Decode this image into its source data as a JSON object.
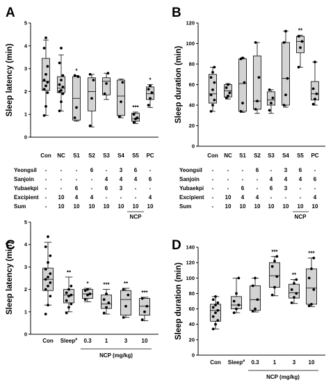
{
  "chart_data": [
    {
      "panel": "A",
      "type": "box",
      "ylabel": "Sleep latency (min)",
      "ylim": [
        0,
        5
      ],
      "yticks": [
        "0",
        "1",
        "2",
        "3",
        "4",
        "5"
      ],
      "categories": [
        "Con",
        "NC",
        "S1",
        "S2",
        "S3",
        "S4",
        "S5",
        "PC"
      ],
      "boxes": [
        {
          "min": 0.95,
          "q1": 2.05,
          "median": 2.45,
          "q3": 3.45,
          "max": 4.25,
          "points": [
            0.95,
            1.35,
            1.95,
            2.1,
            2.25,
            2.4,
            2.5,
            2.75,
            3.1,
            3.9,
            4.35
          ]
        },
        {
          "min": 1.15,
          "q1": 1.95,
          "median": 2.15,
          "q3": 2.65,
          "max": 3.6,
          "points": [
            1.15,
            1.55,
            1.9,
            2.0,
            2.05,
            2.2,
            2.3,
            2.5,
            2.7,
            3.25,
            3.9
          ]
        },
        {
          "min": 0.7,
          "q1": 0.75,
          "median": 1.7,
          "q3": 2.65,
          "max": 2.7,
          "points": [
            0.85,
            1.3,
            2.65,
            2.7
          ]
        },
        {
          "min": 0.45,
          "q1": 1.15,
          "median": 2.0,
          "q3": 2.6,
          "max": 2.75,
          "points": [
            0.5,
            1.7,
            2.5,
            2.75
          ]
        },
        {
          "min": 1.65,
          "q1": 1.85,
          "median": 2.45,
          "q3": 2.6,
          "max": 2.8,
          "points": [
            1.9,
            2.35,
            2.8
          ]
        },
        {
          "min": 0.85,
          "q1": 0.95,
          "median": 1.8,
          "q3": 2.5,
          "max": 2.55,
          "points": [
            0.9,
            1.55,
            2.4
          ]
        },
        {
          "min": 0.6,
          "q1": 0.7,
          "median": 0.8,
          "q3": 1.05,
          "max": 1.1,
          "points": [
            0.65,
            0.8,
            0.85,
            1.0
          ]
        },
        {
          "min": 1.3,
          "q1": 1.65,
          "median": 1.9,
          "q3": 2.2,
          "max": 2.3,
          "points": [
            1.4,
            1.7,
            1.95,
            2.1,
            2.25
          ]
        }
      ],
      "significance": [
        "",
        "",
        "*",
        "",
        "",
        "",
        "***",
        "*"
      ]
    },
    {
      "panel": "B",
      "type": "box",
      "ylabel": "Sleep duration (min)",
      "ylim": [
        0,
        120
      ],
      "yticks": [
        "0",
        "20",
        "40",
        "60",
        "80",
        "100",
        "120"
      ],
      "categories": [
        "Con",
        "NC",
        "S1",
        "S2",
        "S3",
        "S4",
        "S5",
        "PC"
      ],
      "boxes": [
        {
          "min": 34,
          "q1": 42,
          "median": 51,
          "q3": 70,
          "max": 77,
          "points": [
            34,
            40,
            45,
            50,
            55,
            62,
            67,
            72,
            77
          ]
        },
        {
          "min": 46,
          "q1": 48,
          "median": 54,
          "q3": 60,
          "max": 61,
          "points": [
            47,
            49,
            52,
            57,
            60
          ]
        },
        {
          "min": 33,
          "q1": 34,
          "median": 61,
          "q3": 85,
          "max": 86,
          "points": [
            34,
            42,
            62,
            85,
            86
          ]
        },
        {
          "min": 32,
          "q1": 36,
          "median": 44,
          "q3": 88,
          "max": 101,
          "points": [
            36,
            44,
            67,
            101
          ]
        },
        {
          "min": 32,
          "q1": 40,
          "median": 45,
          "q3": 53,
          "max": 55,
          "points": [
            35,
            42,
            47,
            55
          ]
        },
        {
          "min": 38,
          "q1": 40,
          "median": 66,
          "q3": 101,
          "max": 112,
          "points": [
            40,
            50,
            66,
            101,
            112
          ]
        },
        {
          "min": 77,
          "q1": 91,
          "median": 102,
          "q3": 107,
          "max": 108,
          "points": [
            77,
            96,
            102,
            107
          ]
        },
        {
          "min": 40,
          "q1": 45,
          "median": 51,
          "q3": 63,
          "max": 82,
          "points": [
            41,
            46,
            51,
            56,
            82
          ]
        }
      ],
      "significance": [
        "",
        "",
        "",
        "",
        "",
        "",
        "**",
        ""
      ]
    },
    {
      "panel": "C",
      "type": "box",
      "ylabel": "Sleep latency (min)",
      "ylim": [
        0,
        5
      ],
      "yticks": [
        "0",
        "1",
        "2",
        "3",
        "4",
        "5"
      ],
      "categories": [
        "Con",
        "Sleep",
        "0.3",
        "1",
        "3",
        "10"
      ],
      "boxes": [
        {
          "min": 1.3,
          "q1": 1.95,
          "median": 2.45,
          "q3": 2.95,
          "max": 4.1,
          "points": [
            0.9,
            1.3,
            1.7,
            2.0,
            2.15,
            2.3,
            2.45,
            2.55,
            2.7,
            2.9,
            3.2,
            3.5,
            3.9,
            4.35
          ]
        },
        {
          "min": 1.0,
          "q1": 1.4,
          "median": 1.75,
          "q3": 2.0,
          "max": 2.55,
          "points": [
            0.95,
            1.2,
            1.35,
            1.5,
            1.7,
            1.75,
            1.85,
            2.0,
            2.15
          ]
        },
        {
          "min": 1.45,
          "q1": 1.6,
          "median": 1.8,
          "q3": 2.0,
          "max": 2.05,
          "points": [
            1.55,
            1.75,
            1.8,
            1.95,
            2.0
          ]
        },
        {
          "min": 0.9,
          "q1": 1.15,
          "median": 1.35,
          "q3": 1.75,
          "max": 2.0,
          "points": [
            0.95,
            1.2,
            1.4,
            1.55,
            1.8
          ]
        },
        {
          "min": 0.75,
          "q1": 0.85,
          "median": 1.55,
          "q3": 1.95,
          "max": 2.05,
          "points": [
            0.75,
            1.25,
            1.75,
            2.0
          ]
        },
        {
          "min": 0.6,
          "q1": 0.85,
          "median": 1.25,
          "q3": 1.6,
          "max": 1.65,
          "points": [
            0.65,
            1.0,
            1.25,
            1.6
          ]
        }
      ],
      "significance": [
        "",
        "**",
        "*",
        "***",
        "**",
        "***"
      ]
    },
    {
      "panel": "D",
      "type": "box",
      "ylabel": "Sleep duration (min)",
      "ylim": [
        0,
        140
      ],
      "yticks": [
        "0",
        "20",
        "40",
        "60",
        "80",
        "100",
        "120",
        "140"
      ],
      "categories": [
        "Con",
        "Sleep",
        "0.3",
        "1",
        "3",
        "10"
      ],
      "boxes": [
        {
          "min": 34,
          "q1": 44,
          "median": 58,
          "q3": 66,
          "max": 76,
          "points": [
            34,
            40,
            45,
            50,
            55,
            58,
            62,
            65,
            68,
            72,
            76
          ]
        },
        {
          "min": 55,
          "q1": 60,
          "median": 65,
          "q3": 76,
          "max": 100,
          "points": [
            55,
            60,
            65,
            70,
            80,
            100
          ]
        },
        {
          "min": 56,
          "q1": 58,
          "median": 72,
          "q3": 90,
          "max": 100,
          "points": [
            57,
            60,
            72,
            90,
            100
          ]
        },
        {
          "min": 77,
          "q1": 88,
          "median": 103,
          "q3": 120,
          "max": 128,
          "points": [
            78,
            88,
            102,
            115,
            122,
            128
          ]
        },
        {
          "min": 67,
          "q1": 74,
          "median": 81,
          "q3": 92,
          "max": 98,
          "points": [
            68,
            75,
            80,
            85,
            93,
            98
          ]
        },
        {
          "min": 63,
          "q1": 66,
          "median": 87,
          "q3": 112,
          "max": 126,
          "points": [
            64,
            66,
            85,
            100,
            112,
            126
          ]
        }
      ],
      "significance": [
        "",
        "",
        "",
        "***",
        "**",
        "***"
      ]
    }
  ],
  "panel_a_table": {
    "rows": [
      {
        "label": "Yeongsil",
        "values": [
          "-",
          "-",
          "-",
          "6",
          "-",
          "3",
          "6",
          "-"
        ]
      },
      {
        "label": "Sanjoin",
        "values": [
          "-",
          "-",
          "-",
          "-",
          "4",
          "4",
          "4",
          "6"
        ]
      },
      {
        "label": "Yubaekpi",
        "values": [
          "-",
          "-",
          "6",
          "-",
          "6",
          "3",
          "-",
          "-"
        ]
      },
      {
        "label": "Excipient",
        "values": [
          "-",
          "10",
          "4",
          "4",
          "-",
          "-",
          "-",
          "4"
        ]
      },
      {
        "label": "Sum",
        "values": [
          "-",
          "10",
          "10",
          "10",
          "10",
          "10",
          "10",
          "10"
        ]
      }
    ],
    "group_label": "NCP"
  },
  "panel_c_group_label": "NCP (mg/kg)",
  "sleep_superscript": "#"
}
